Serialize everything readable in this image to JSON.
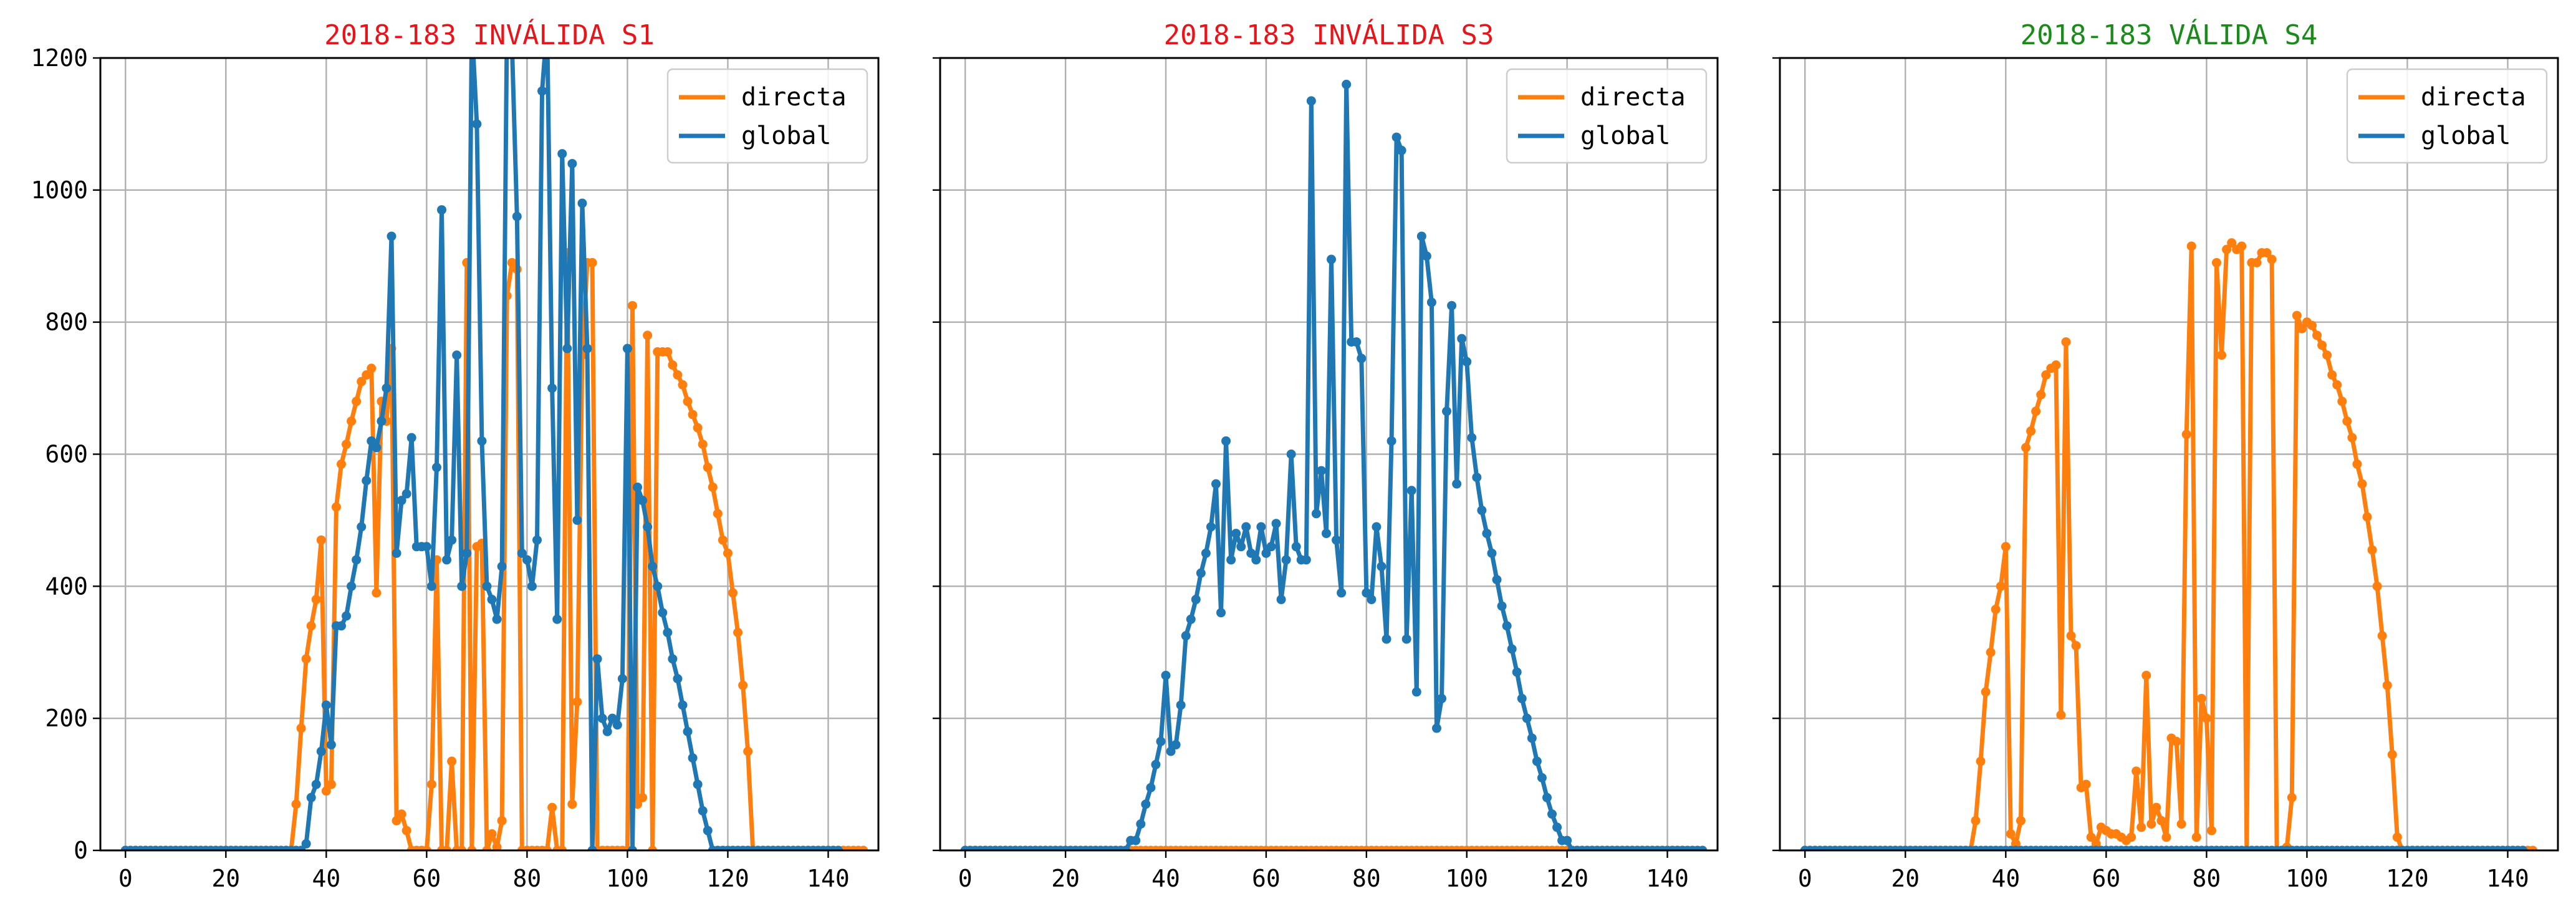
{
  "chart_data": [
    {
      "type": "line",
      "title": "2018-183 INVÁLIDA S1",
      "title_color": "#e8141a",
      "xlim": [
        -5,
        150
      ],
      "ylim": [
        0,
        1200
      ],
      "xticks": [
        0,
        20,
        40,
        60,
        80,
        100,
        120,
        140
      ],
      "yticks": [
        0,
        200,
        400,
        600,
        800,
        1000,
        1200
      ],
      "show_yticklabels": true,
      "grid": true,
      "legend_position": "top-right",
      "series": [
        {
          "name": "directa",
          "color": "#ff7f0e",
          "values": [
            0,
            0,
            0,
            0,
            0,
            0,
            0,
            0,
            0,
            0,
            0,
            0,
            0,
            0,
            0,
            0,
            0,
            0,
            0,
            0,
            0,
            0,
            0,
            0,
            0,
            0,
            0,
            0,
            0,
            0,
            0,
            0,
            0,
            0,
            70,
            185,
            290,
            340,
            380,
            470,
            90,
            100,
            520,
            585,
            615,
            650,
            680,
            710,
            720,
            730,
            390,
            680,
            650,
            760,
            45,
            55,
            30,
            0,
            0,
            0,
            0,
            100,
            440,
            0,
            0,
            135,
            0,
            0,
            890,
            0,
            460,
            465,
            0,
            25,
            5,
            45,
            840,
            890,
            880,
            0,
            0,
            0,
            0,
            0,
            0,
            65,
            0,
            0,
            905,
            70,
            225,
            750,
            890,
            890,
            0,
            0,
            0,
            0,
            0,
            0,
            0,
            825,
            70,
            80,
            780,
            0,
            755,
            755,
            755,
            735,
            720,
            705,
            680,
            660,
            640,
            615,
            580,
            550,
            510,
            470,
            450,
            390,
            330,
            250,
            150,
            0,
            0,
            0,
            0,
            0,
            0,
            0,
            0,
            0,
            0,
            0,
            0,
            0,
            0,
            0,
            0,
            0,
            0,
            0,
            0,
            0,
            0,
            0
          ]
        },
        {
          "name": "global",
          "color": "#1f77b4",
          "values": [
            0,
            0,
            0,
            0,
            0,
            0,
            0,
            0,
            0,
            0,
            0,
            0,
            0,
            0,
            0,
            0,
            0,
            0,
            0,
            0,
            0,
            0,
            0,
            0,
            0,
            0,
            0,
            0,
            0,
            0,
            0,
            0,
            0,
            0,
            0,
            0,
            10,
            80,
            100,
            150,
            220,
            160,
            340,
            340,
            355,
            400,
            440,
            490,
            560,
            620,
            610,
            650,
            700,
            930,
            450,
            530,
            540,
            625,
            460,
            460,
            460,
            400,
            580,
            970,
            440,
            470,
            750,
            400,
            450,
            1250,
            1100,
            620,
            400,
            380,
            350,
            430,
            1250,
            1220,
            960,
            450,
            440,
            400,
            470,
            1150,
            1250,
            700,
            350,
            1055,
            760,
            1040,
            500,
            980,
            760,
            0,
            290,
            200,
            180,
            200,
            190,
            260,
            760,
            0,
            550,
            530,
            490,
            430,
            400,
            360,
            330,
            290,
            260,
            220,
            180,
            140,
            100,
            60,
            30,
            0,
            0,
            0,
            0,
            0,
            0,
            0,
            0,
            0,
            0,
            0,
            0,
            0,
            0,
            0,
            0,
            0,
            0,
            0,
            0,
            0,
            0,
            0,
            0,
            0,
            0
          ]
        }
      ]
    },
    {
      "type": "line",
      "title": "2018-183 INVÁLIDA S3",
      "title_color": "#e8141a",
      "xlim": [
        -5,
        150
      ],
      "ylim": [
        0,
        1200
      ],
      "xticks": [
        0,
        20,
        40,
        60,
        80,
        100,
        120,
        140
      ],
      "yticks": [
        0,
        200,
        400,
        600,
        800,
        1000,
        1200
      ],
      "show_yticklabels": false,
      "grid": true,
      "legend_position": "top-right",
      "series": [
        {
          "name": "directa",
          "color": "#ff7f0e",
          "values": [
            0,
            0,
            0,
            0,
            0,
            0,
            0,
            0,
            0,
            0,
            0,
            0,
            0,
            0,
            0,
            0,
            0,
            0,
            0,
            0,
            0,
            0,
            0,
            0,
            0,
            0,
            0,
            0,
            0,
            0,
            0,
            0,
            0,
            0,
            0,
            0,
            0,
            0,
            0,
            0,
            0,
            0,
            0,
            0,
            0,
            0,
            0,
            0,
            0,
            0,
            0,
            0,
            0,
            0,
            0,
            0,
            0,
            0,
            0,
            0,
            0,
            0,
            0,
            0,
            0,
            0,
            0,
            0,
            0,
            0,
            0,
            0,
            0,
            0,
            0,
            0,
            0,
            0,
            0,
            0,
            0,
            0,
            0,
            0,
            0,
            0,
            0,
            0,
            0,
            0,
            0,
            0,
            0,
            0,
            0,
            0,
            0,
            0,
            0,
            0,
            0,
            0,
            0,
            0,
            0,
            0,
            0,
            0,
            0,
            0,
            0,
            0,
            0,
            0,
            0,
            0,
            0,
            0,
            0,
            0,
            0,
            0,
            0,
            0,
            0,
            0,
            0,
            0,
            0,
            0,
            0,
            0,
            0,
            0,
            0,
            0,
            0,
            0,
            0,
            0,
            0,
            0,
            0,
            0
          ]
        },
        {
          "name": "global",
          "color": "#1f77b4",
          "values": [
            0,
            0,
            0,
            0,
            0,
            0,
            0,
            0,
            0,
            0,
            0,
            0,
            0,
            0,
            0,
            0,
            0,
            0,
            0,
            0,
            0,
            0,
            0,
            0,
            0,
            0,
            0,
            0,
            0,
            0,
            0,
            0,
            0,
            15,
            15,
            40,
            70,
            95,
            130,
            165,
            265,
            150,
            160,
            220,
            325,
            350,
            380,
            420,
            450,
            490,
            555,
            360,
            620,
            440,
            480,
            460,
            490,
            450,
            440,
            490,
            450,
            460,
            495,
            380,
            440,
            600,
            460,
            440,
            440,
            1135,
            510,
            575,
            480,
            895,
            470,
            390,
            1160,
            770,
            770,
            745,
            390,
            380,
            490,
            430,
            320,
            620,
            1080,
            1060,
            320,
            545,
            240,
            930,
            900,
            830,
            185,
            230,
            665,
            825,
            555,
            775,
            740,
            625,
            565,
            515,
            480,
            450,
            410,
            370,
            340,
            305,
            270,
            230,
            200,
            170,
            135,
            110,
            80,
            55,
            35,
            15,
            15,
            0,
            0,
            0,
            0,
            0,
            0,
            0,
            0,
            0,
            0,
            0,
            0,
            0,
            0,
            0,
            0,
            0,
            0,
            0,
            0,
            0,
            0,
            0,
            0,
            0,
            0,
            0
          ]
        }
      ]
    },
    {
      "type": "line",
      "title": "2018-183 VÁLIDA S4",
      "title_color": "#1a8a1a",
      "xlim": [
        -5,
        150
      ],
      "ylim": [
        0,
        1200
      ],
      "xticks": [
        0,
        20,
        40,
        60,
        80,
        100,
        120,
        140
      ],
      "yticks": [
        0,
        200,
        400,
        600,
        800,
        1000,
        1200
      ],
      "show_yticklabels": false,
      "grid": true,
      "legend_position": "top-right",
      "series": [
        {
          "name": "directa",
          "color": "#ff7f0e",
          "values": [
            0,
            0,
            0,
            0,
            0,
            0,
            0,
            0,
            0,
            0,
            0,
            0,
            0,
            0,
            0,
            0,
            0,
            0,
            0,
            0,
            0,
            0,
            0,
            0,
            0,
            0,
            0,
            0,
            0,
            0,
            0,
            0,
            0,
            0,
            45,
            135,
            240,
            300,
            365,
            400,
            460,
            25,
            10,
            45,
            610,
            635,
            665,
            690,
            720,
            730,
            735,
            205,
            770,
            325,
            310,
            95,
            100,
            20,
            10,
            35,
            30,
            25,
            25,
            20,
            15,
            20,
            120,
            35,
            265,
            40,
            65,
            45,
            20,
            170,
            165,
            40,
            630,
            915,
            20,
            230,
            200,
            30,
            890,
            750,
            910,
            920,
            910,
            915,
            0,
            890,
            890,
            905,
            905,
            895,
            0,
            0,
            5,
            80,
            810,
            790,
            800,
            795,
            780,
            765,
            750,
            720,
            705,
            680,
            650,
            625,
            585,
            555,
            505,
            455,
            400,
            325,
            250,
            145,
            20,
            0,
            0,
            0,
            0,
            0,
            0,
            0,
            0,
            0,
            0,
            0,
            0,
            0,
            0,
            0,
            0,
            0,
            0,
            0,
            0,
            0,
            0,
            0,
            0,
            0,
            0,
            0
          ]
        },
        {
          "name": "global",
          "color": "#1f77b4",
          "values": [
            0,
            0,
            0,
            0,
            0,
            0,
            0,
            0,
            0,
            0,
            0,
            0,
            0,
            0,
            0,
            0,
            0,
            0,
            0,
            0,
            0,
            0,
            0,
            0,
            0,
            0,
            0,
            0,
            0,
            0,
            0,
            0,
            0,
            0,
            0,
            0,
            0,
            0,
            0,
            0,
            0,
            0,
            0,
            0,
            0,
            0,
            0,
            0,
            0,
            0,
            0,
            0,
            0,
            0,
            0,
            0,
            0,
            0,
            0,
            0,
            0,
            0,
            0,
            0,
            0,
            0,
            0,
            0,
            0,
            0,
            0,
            0,
            0,
            0,
            0,
            0,
            0,
            0,
            0,
            0,
            0,
            0,
            0,
            0,
            0,
            0,
            0,
            0,
            0,
            0,
            0,
            0,
            0,
            0,
            0,
            0,
            0,
            0,
            0,
            0,
            0,
            0,
            0,
            0,
            0,
            0,
            0,
            0,
            0,
            0,
            0,
            0,
            0,
            0,
            0,
            0,
            0,
            0,
            0,
            0,
            0,
            0,
            0,
            0,
            0,
            0,
            0,
            0,
            0,
            0,
            0,
            0,
            0,
            0,
            0,
            0,
            0,
            0,
            0,
            0,
            0,
            0,
            0,
            0
          ]
        }
      ]
    }
  ]
}
